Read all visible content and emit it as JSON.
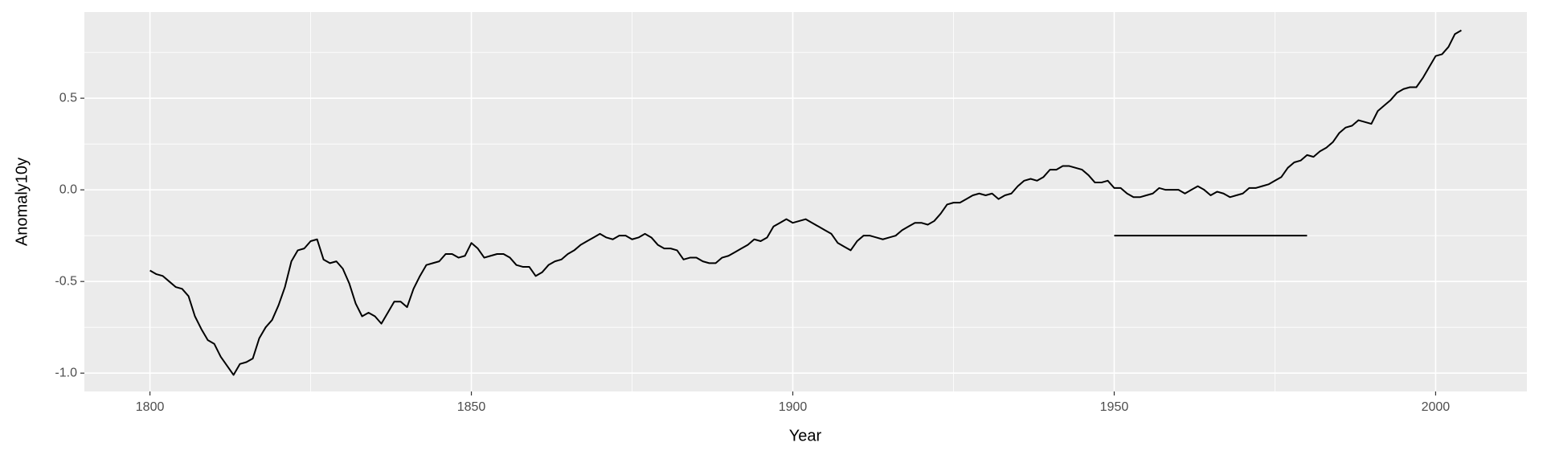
{
  "chart_data": {
    "type": "line",
    "xlabel": "Year",
    "ylabel": "Anomaly10y",
    "xlim": [
      1789.8,
      2014.2
    ],
    "ylim": [
      -1.1,
      0.97
    ],
    "xticks": [
      1800,
      1850,
      1900,
      1950,
      2000
    ],
    "yticks": [
      {
        "value": -1,
        "label": "-1.0"
      },
      -0.5,
      {
        "value": 0,
        "label": "0.0"
      },
      0.5
    ],
    "grid": true,
    "minor_grid": true,
    "series": [
      {
        "color": "#000000",
        "x": [
          1800,
          1801,
          1802,
          1803,
          1804,
          1805,
          1806,
          1807,
          1808,
          1809,
          1810,
          1811,
          1812,
          1813,
          1814,
          1815,
          1816,
          1817,
          1818,
          1819,
          1820,
          1821,
          1822,
          1823,
          1824,
          1825,
          1826,
          1827,
          1828,
          1829,
          1830,
          1831,
          1832,
          1833,
          1834,
          1835,
          1836,
          1837,
          1838,
          1839,
          1840,
          1841,
          1842,
          1843,
          1844,
          1845,
          1846,
          1847,
          1848,
          1849,
          1850,
          1851,
          1852,
          1853,
          1854,
          1855,
          1856,
          1857,
          1858,
          1859,
          1860,
          1861,
          1862,
          1863,
          1864,
          1865,
          1866,
          1867,
          1868,
          1869,
          1870,
          1871,
          1872,
          1873,
          1874,
          1875,
          1876,
          1877,
          1878,
          1879,
          1880,
          1881,
          1882,
          1883,
          1884,
          1885,
          1886,
          1887,
          1888,
          1889,
          1890,
          1891,
          1892,
          1893,
          1894,
          1895,
          1896,
          1897,
          1898,
          1899,
          1900,
          1901,
          1902,
          1903,
          1904,
          1905,
          1906,
          1907,
          1908,
          1909,
          1910,
          1911,
          1912,
          1913,
          1914,
          1915,
          1916,
          1917,
          1918,
          1919,
          1920,
          1921,
          1922,
          1923,
          1924,
          1925,
          1926,
          1927,
          1928,
          1929,
          1930,
          1931,
          1932,
          1933,
          1934,
          1935,
          1936,
          1937,
          1938,
          1939,
          1940,
          1941,
          1942,
          1943,
          1944,
          1945,
          1946,
          1947,
          1948,
          1949,
          1950,
          1951,
          1952,
          1953,
          1954,
          1955,
          1956,
          1957,
          1958,
          1959,
          1960,
          1961,
          1962,
          1963,
          1964,
          1965,
          1966,
          1967,
          1968,
          1969,
          1970,
          1971,
          1972,
          1973,
          1974,
          1975,
          1976,
          1977,
          1978,
          1979,
          1980,
          1981,
          1982,
          1983,
          1984,
          1985,
          1986,
          1987,
          1988,
          1989,
          1990,
          1991,
          1992,
          1993,
          1994,
          1995,
          1996,
          1997,
          1998,
          1999,
          2000,
          2001,
          2002,
          2003,
          2004
        ],
        "values": [
          -0.44,
          -0.46,
          -0.47,
          -0.5,
          -0.53,
          -0.54,
          -0.58,
          -0.69,
          -0.76,
          -0.82,
          -0.84,
          -0.91,
          -0.96,
          -1.01,
          -0.95,
          -0.94,
          -0.92,
          -0.81,
          -0.75,
          -0.71,
          -0.63,
          -0.53,
          -0.39,
          -0.33,
          -0.32,
          -0.28,
          -0.27,
          -0.38,
          -0.4,
          -0.39,
          -0.43,
          -0.51,
          -0.62,
          -0.69,
          -0.67,
          -0.69,
          -0.73,
          -0.67,
          -0.61,
          -0.61,
          -0.64,
          -0.54,
          -0.47,
          -0.41,
          -0.4,
          -0.39,
          -0.35,
          -0.35,
          -0.37,
          -0.36,
          -0.29,
          -0.32,
          -0.37,
          -0.36,
          -0.35,
          -0.35,
          -0.37,
          -0.41,
          -0.42,
          -0.42,
          -0.47,
          -0.45,
          -0.41,
          -0.39,
          -0.38,
          -0.35,
          -0.33,
          -0.3,
          -0.28,
          -0.26,
          -0.24,
          -0.26,
          -0.27,
          -0.25,
          -0.25,
          -0.27,
          -0.26,
          -0.24,
          -0.26,
          -0.3,
          -0.32,
          -0.32,
          -0.33,
          -0.38,
          -0.37,
          -0.37,
          -0.39,
          -0.4,
          -0.4,
          -0.37,
          -0.36,
          -0.34,
          -0.32,
          -0.3,
          -0.27,
          -0.28,
          -0.26,
          -0.2,
          -0.18,
          -0.16,
          -0.18,
          -0.17,
          -0.16,
          -0.18,
          -0.2,
          -0.22,
          -0.24,
          -0.29,
          -0.31,
          -0.33,
          -0.28,
          -0.25,
          -0.25,
          -0.26,
          -0.27,
          -0.26,
          -0.25,
          -0.22,
          -0.2,
          -0.18,
          -0.18,
          -0.19,
          -0.17,
          -0.13,
          -0.08,
          -0.07,
          -0.07,
          -0.05,
          -0.03,
          -0.02,
          -0.03,
          -0.02,
          -0.05,
          -0.03,
          -0.02,
          0.02,
          0.05,
          0.06,
          0.05,
          0.07,
          0.11,
          0.11,
          0.13,
          0.13,
          0.12,
          0.11,
          0.08,
          0.04,
          0.04,
          0.05,
          0.01,
          0.01,
          -0.02,
          -0.04,
          -0.04,
          -0.03,
          -0.02,
          0.01,
          0.0,
          0.0,
          0.0,
          -0.02,
          0.0,
          0.02,
          0.0,
          -0.03,
          -0.01,
          -0.02,
          -0.04,
          -0.03,
          -0.02,
          0.01,
          0.01,
          0.02,
          0.03,
          0.05,
          0.07,
          0.12,
          0.15,
          0.16,
          0.19,
          0.18,
          0.21,
          0.23,
          0.26,
          0.31,
          0.34,
          0.35,
          0.38,
          0.37,
          0.36,
          0.43,
          0.46,
          0.49,
          0.53,
          0.55,
          0.56,
          0.56,
          0.61,
          0.67,
          0.73,
          0.74,
          0.78,
          0.85,
          0.87
        ]
      },
      {
        "color": "#000000",
        "x": [
          1950,
          1980
        ],
        "values": [
          -0.25,
          -0.25
        ]
      }
    ]
  }
}
